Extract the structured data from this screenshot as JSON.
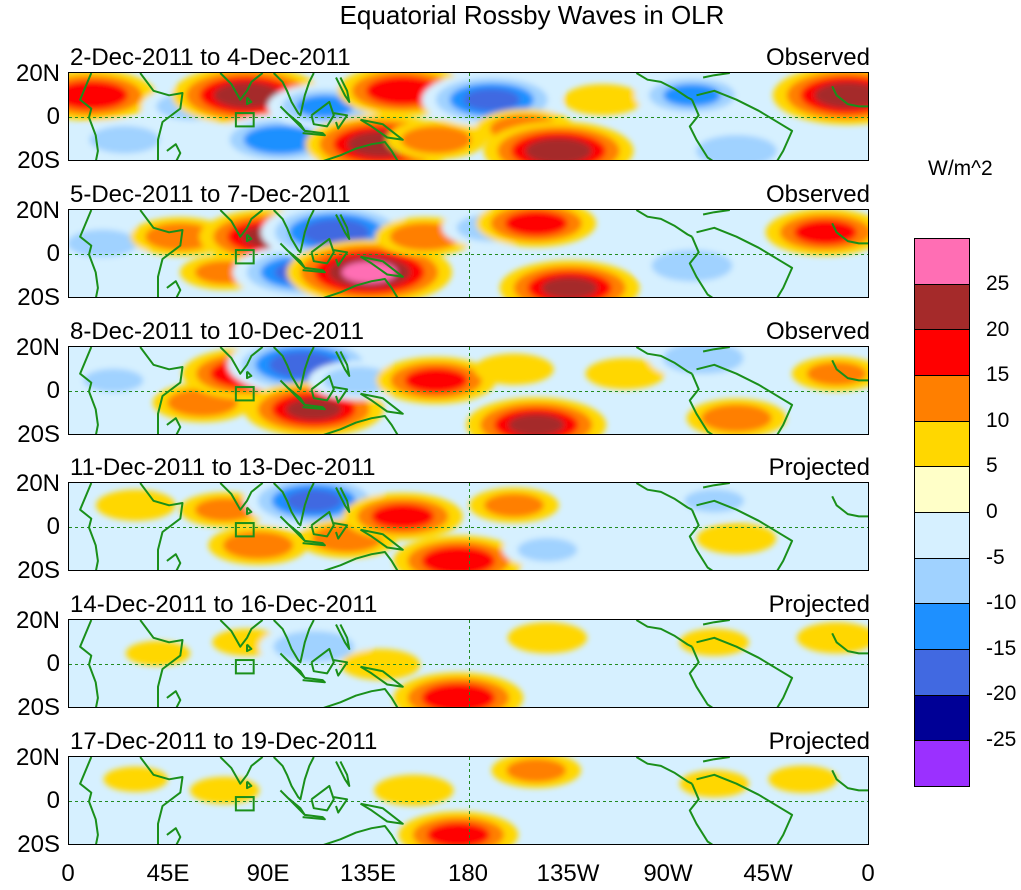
{
  "chart_data": {
    "type": "heatmap",
    "title": "Equatorial Rossby Waves in OLR",
    "xlabel": "",
    "ylabel": "",
    "x_ticks": [
      "0",
      "45E",
      "90E",
      "135E",
      "180",
      "135W",
      "90W",
      "45W",
      "0"
    ],
    "y_ticks": [
      "20N",
      "0",
      "20S"
    ],
    "units": "W/m^2",
    "colorbar": {
      "labels": [
        "25",
        "20",
        "15",
        "10",
        "5",
        "0",
        "-5",
        "-10",
        "-15",
        "-20",
        "-25"
      ],
      "colors": [
        "#ff6eb4",
        "#a52a2a",
        "#ff0000",
        "#ff7f00",
        "#ffd700",
        "#ffffc8",
        "#d6f0ff",
        "#a0d2ff",
        "#1e90ff",
        "#4169e1",
        "#000096",
        "#9b30ff"
      ]
    },
    "panels": [
      {
        "date_range": "2-Dec-2011 to 4-Dec-2011",
        "label": "Observed"
      },
      {
        "date_range": "5-Dec-2011 to 7-Dec-2011",
        "label": "Observed"
      },
      {
        "date_range": "8-Dec-2011 to 10-Dec-2011",
        "label": "Observed"
      },
      {
        "date_range": "11-Dec-2011 to 13-Dec-2011",
        "label": "Projected"
      },
      {
        "date_range": "14-Dec-2011 to 16-Dec-2011",
        "label": "Projected"
      },
      {
        "date_range": "17-Dec-2011 to 19-Dec-2011",
        "label": "Projected"
      }
    ],
    "anomalies": [
      [
        {
          "lon": 10,
          "lat": 10,
          "v": 18
        },
        {
          "lon": 25,
          "lat": -10,
          "v": -12
        },
        {
          "lon": 55,
          "lat": 5,
          "v": -12
        },
        {
          "lon": 80,
          "lat": 10,
          "v": 22
        },
        {
          "lon": 95,
          "lat": -10,
          "v": -18
        },
        {
          "lon": 115,
          "lat": 5,
          "v": -15
        },
        {
          "lon": 140,
          "lat": -12,
          "v": 22
        },
        {
          "lon": 150,
          "lat": 12,
          "v": 18
        },
        {
          "lon": 165,
          "lat": -10,
          "v": 12
        },
        {
          "lon": 190,
          "lat": 8,
          "v": -20
        },
        {
          "lon": 205,
          "lat": -5,
          "v": 12
        },
        {
          "lon": 220,
          "lat": -15,
          "v": 22
        },
        {
          "lon": 240,
          "lat": 8,
          "v": 8
        },
        {
          "lon": 280,
          "lat": 10,
          "v": -15
        },
        {
          "lon": 300,
          "lat": -15,
          "v": -14
        },
        {
          "lon": 350,
          "lat": 10,
          "v": 22
        }
      ],
      [
        {
          "lon": 15,
          "lat": 5,
          "v": -12
        },
        {
          "lon": 50,
          "lat": 8,
          "v": 12
        },
        {
          "lon": 70,
          "lat": -8,
          "v": 10
        },
        {
          "lon": 90,
          "lat": 8,
          "v": 20
        },
        {
          "lon": 105,
          "lat": -8,
          "v": -20
        },
        {
          "lon": 120,
          "lat": 10,
          "v": -22
        },
        {
          "lon": 135,
          "lat": -8,
          "v": 25
        },
        {
          "lon": 160,
          "lat": 8,
          "v": 12
        },
        {
          "lon": 190,
          "lat": 12,
          "v": -12
        },
        {
          "lon": 210,
          "lat": 14,
          "v": 16
        },
        {
          "lon": 225,
          "lat": -15,
          "v": 20
        },
        {
          "lon": 280,
          "lat": -5,
          "v": -14
        },
        {
          "lon": 340,
          "lat": 10,
          "v": 16
        }
      ],
      [
        {
          "lon": 20,
          "lat": 5,
          "v": -10
        },
        {
          "lon": 60,
          "lat": -5,
          "v": 12
        },
        {
          "lon": 80,
          "lat": 8,
          "v": 18
        },
        {
          "lon": 105,
          "lat": 12,
          "v": -22
        },
        {
          "lon": 110,
          "lat": -8,
          "v": 20
        },
        {
          "lon": 130,
          "lat": 5,
          "v": -12
        },
        {
          "lon": 165,
          "lat": 5,
          "v": 16
        },
        {
          "lon": 200,
          "lat": 10,
          "v": 8
        },
        {
          "lon": 210,
          "lat": -15,
          "v": 20
        },
        {
          "lon": 250,
          "lat": 8,
          "v": 8
        },
        {
          "lon": 285,
          "lat": 15,
          "v": -14
        },
        {
          "lon": 300,
          "lat": -12,
          "v": 12
        },
        {
          "lon": 345,
          "lat": 8,
          "v": 10
        }
      ],
      [
        {
          "lon": 30,
          "lat": 10,
          "v": 8
        },
        {
          "lon": 70,
          "lat": 8,
          "v": 10
        },
        {
          "lon": 85,
          "lat": -8,
          "v": 12
        },
        {
          "lon": 110,
          "lat": 12,
          "v": -20
        },
        {
          "lon": 125,
          "lat": -5,
          "v": 12
        },
        {
          "lon": 150,
          "lat": 5,
          "v": 16
        },
        {
          "lon": 175,
          "lat": -15,
          "v": 18
        },
        {
          "lon": 200,
          "lat": 10,
          "v": 10
        },
        {
          "lon": 215,
          "lat": -10,
          "v": -10
        },
        {
          "lon": 290,
          "lat": 12,
          "v": -10
        },
        {
          "lon": 300,
          "lat": -5,
          "v": 8
        }
      ],
      [
        {
          "lon": 40,
          "lat": 5,
          "v": 5
        },
        {
          "lon": 80,
          "lat": 10,
          "v": 6
        },
        {
          "lon": 110,
          "lat": 8,
          "v": -14
        },
        {
          "lon": 140,
          "lat": 0,
          "v": 8
        },
        {
          "lon": 175,
          "lat": -15,
          "v": 18
        },
        {
          "lon": 215,
          "lat": 12,
          "v": 8
        },
        {
          "lon": 230,
          "lat": -10,
          "v": -8
        },
        {
          "lon": 290,
          "lat": 10,
          "v": 6
        },
        {
          "lon": 345,
          "lat": 12,
          "v": 8
        }
      ],
      [
        {
          "lon": 30,
          "lat": 10,
          "v": 5
        },
        {
          "lon": 70,
          "lat": 5,
          "v": 6
        },
        {
          "lon": 110,
          "lat": 5,
          "v": -8
        },
        {
          "lon": 155,
          "lat": 5,
          "v": 8
        },
        {
          "lon": 175,
          "lat": -15,
          "v": 16
        },
        {
          "lon": 210,
          "lat": 14,
          "v": 10
        },
        {
          "lon": 290,
          "lat": 8,
          "v": 6
        },
        {
          "lon": 330,
          "lat": 10,
          "v": 6
        }
      ]
    ]
  }
}
